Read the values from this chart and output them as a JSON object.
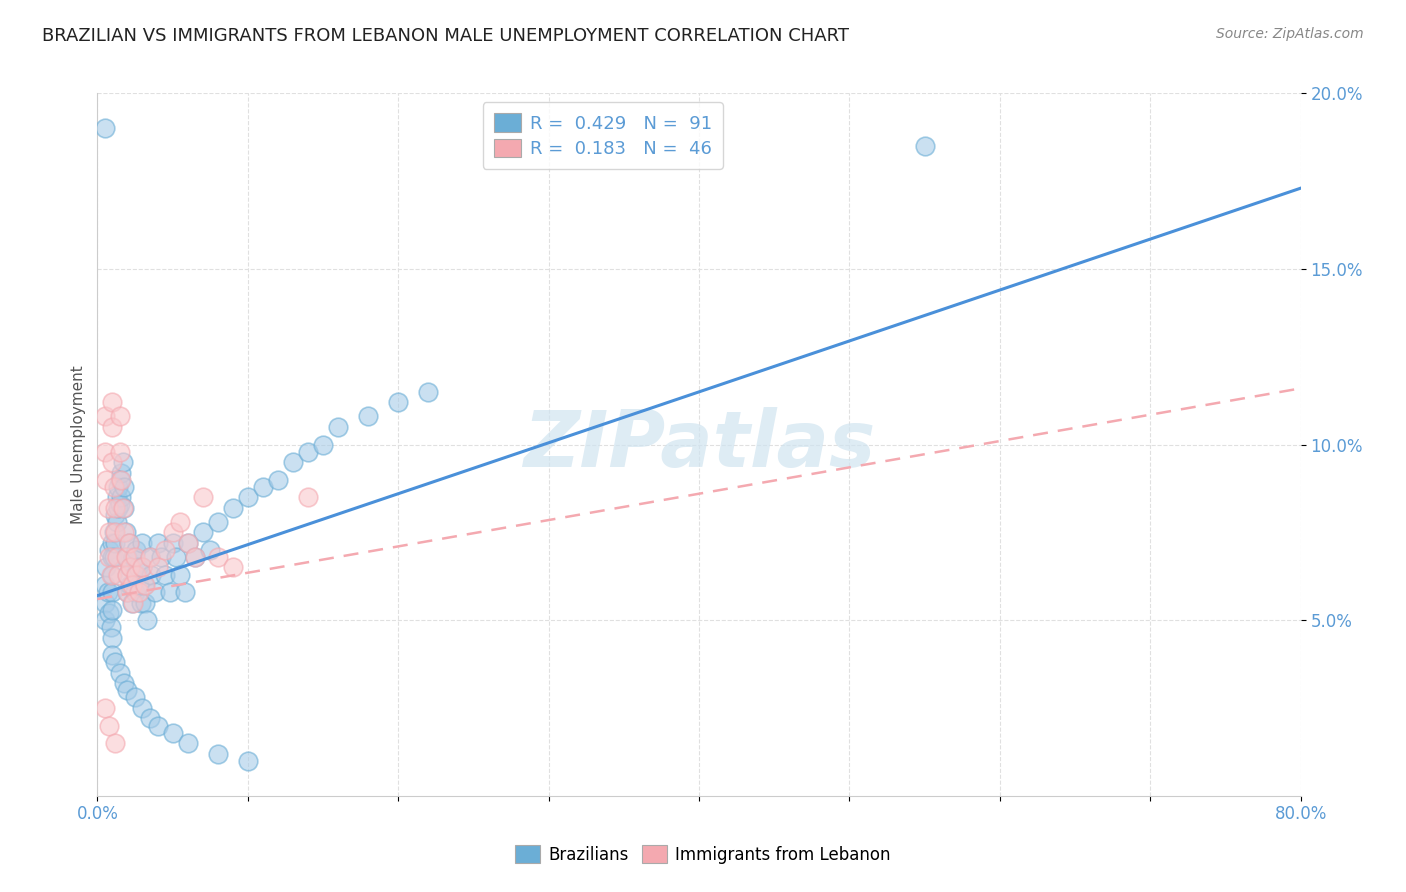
{
  "title": "BRAZILIAN VS IMMIGRANTS FROM LEBANON MALE UNEMPLOYMENT CORRELATION CHART",
  "source": "Source: ZipAtlas.com",
  "ylabel": "Male Unemployment",
  "xlabel": "",
  "xlim": [
    0,
    0.8
  ],
  "ylim": [
    0,
    0.2
  ],
  "yticks": [
    0.05,
    0.1,
    0.15,
    0.2
  ],
  "ytick_labels": [
    "5.0%",
    "10.0%",
    "15.0%",
    "20.0%"
  ],
  "legend_line1": "R =  0.429   N =  91",
  "legend_line2": "R =  0.183   N =  46",
  "legend_color1": "#6baed6",
  "legend_color2": "#f4a9b0",
  "line1_color": "#4a90d9",
  "line2_color": "#f4a9b0",
  "scatter1_facecolor": "#a8cce8",
  "scatter1_edgecolor": "#6baed6",
  "scatter2_facecolor": "#f9c8cc",
  "scatter2_edgecolor": "#f4a9b0",
  "watermark": "ZIPatlas",
  "watermark_color": "#d0e4f0",
  "background_color": "#ffffff",
  "grid_color": "#e0e0e0",
  "title_fontsize": 13,
  "axis_label_fontsize": 11,
  "tick_label_color": "#5b9bd5",
  "line1_slope": 0.145,
  "line1_intercept": 0.057,
  "line2_slope": 0.075,
  "line2_intercept": 0.056,
  "brazilians_scatter_x": [
    0.005,
    0.005,
    0.005,
    0.006,
    0.007,
    0.008,
    0.008,
    0.009,
    0.01,
    0.01,
    0.01,
    0.01,
    0.01,
    0.01,
    0.011,
    0.011,
    0.012,
    0.012,
    0.013,
    0.013,
    0.014,
    0.014,
    0.015,
    0.015,
    0.016,
    0.016,
    0.017,
    0.018,
    0.018,
    0.019,
    0.02,
    0.02,
    0.02,
    0.021,
    0.022,
    0.022,
    0.023,
    0.024,
    0.025,
    0.025,
    0.026,
    0.027,
    0.028,
    0.029,
    0.03,
    0.03,
    0.031,
    0.032,
    0.033,
    0.035,
    0.036,
    0.038,
    0.04,
    0.042,
    0.045,
    0.048,
    0.05,
    0.052,
    0.055,
    0.058,
    0.06,
    0.065,
    0.07,
    0.075,
    0.08,
    0.09,
    0.1,
    0.11,
    0.12,
    0.13,
    0.14,
    0.15,
    0.16,
    0.18,
    0.2,
    0.22,
    0.01,
    0.012,
    0.015,
    0.018,
    0.02,
    0.025,
    0.03,
    0.035,
    0.04,
    0.05,
    0.06,
    0.08,
    0.1,
    0.55,
    0.005
  ],
  "brazilians_scatter_y": [
    0.06,
    0.055,
    0.05,
    0.065,
    0.058,
    0.07,
    0.052,
    0.048,
    0.072,
    0.068,
    0.063,
    0.058,
    0.053,
    0.045,
    0.075,
    0.068,
    0.08,
    0.072,
    0.085,
    0.078,
    0.088,
    0.082,
    0.09,
    0.083,
    0.092,
    0.085,
    0.095,
    0.088,
    0.082,
    0.075,
    0.068,
    0.063,
    0.058,
    0.072,
    0.065,
    0.06,
    0.055,
    0.068,
    0.063,
    0.058,
    0.07,
    0.065,
    0.06,
    0.055,
    0.072,
    0.065,
    0.06,
    0.055,
    0.05,
    0.068,
    0.063,
    0.058,
    0.072,
    0.068,
    0.063,
    0.058,
    0.072,
    0.068,
    0.063,
    0.058,
    0.072,
    0.068,
    0.075,
    0.07,
    0.078,
    0.082,
    0.085,
    0.088,
    0.09,
    0.095,
    0.098,
    0.1,
    0.105,
    0.108,
    0.112,
    0.115,
    0.04,
    0.038,
    0.035,
    0.032,
    0.03,
    0.028,
    0.025,
    0.022,
    0.02,
    0.018,
    0.015,
    0.012,
    0.01,
    0.185,
    0.19
  ],
  "lebanon_scatter_x": [
    0.005,
    0.005,
    0.006,
    0.007,
    0.008,
    0.008,
    0.009,
    0.01,
    0.01,
    0.01,
    0.011,
    0.012,
    0.012,
    0.013,
    0.014,
    0.015,
    0.015,
    0.016,
    0.017,
    0.018,
    0.019,
    0.02,
    0.02,
    0.021,
    0.022,
    0.023,
    0.024,
    0.025,
    0.026,
    0.028,
    0.03,
    0.032,
    0.035,
    0.04,
    0.045,
    0.05,
    0.055,
    0.06,
    0.065,
    0.07,
    0.08,
    0.09,
    0.14,
    0.005,
    0.008,
    0.012
  ],
  "lebanon_scatter_y": [
    0.108,
    0.098,
    0.09,
    0.082,
    0.075,
    0.068,
    0.063,
    0.112,
    0.105,
    0.095,
    0.088,
    0.082,
    0.075,
    0.068,
    0.063,
    0.108,
    0.098,
    0.09,
    0.082,
    0.075,
    0.068,
    0.063,
    0.058,
    0.072,
    0.065,
    0.06,
    0.055,
    0.068,
    0.063,
    0.058,
    0.065,
    0.06,
    0.068,
    0.065,
    0.07,
    0.075,
    0.078,
    0.072,
    0.068,
    0.085,
    0.068,
    0.065,
    0.085,
    0.025,
    0.02,
    0.015
  ]
}
